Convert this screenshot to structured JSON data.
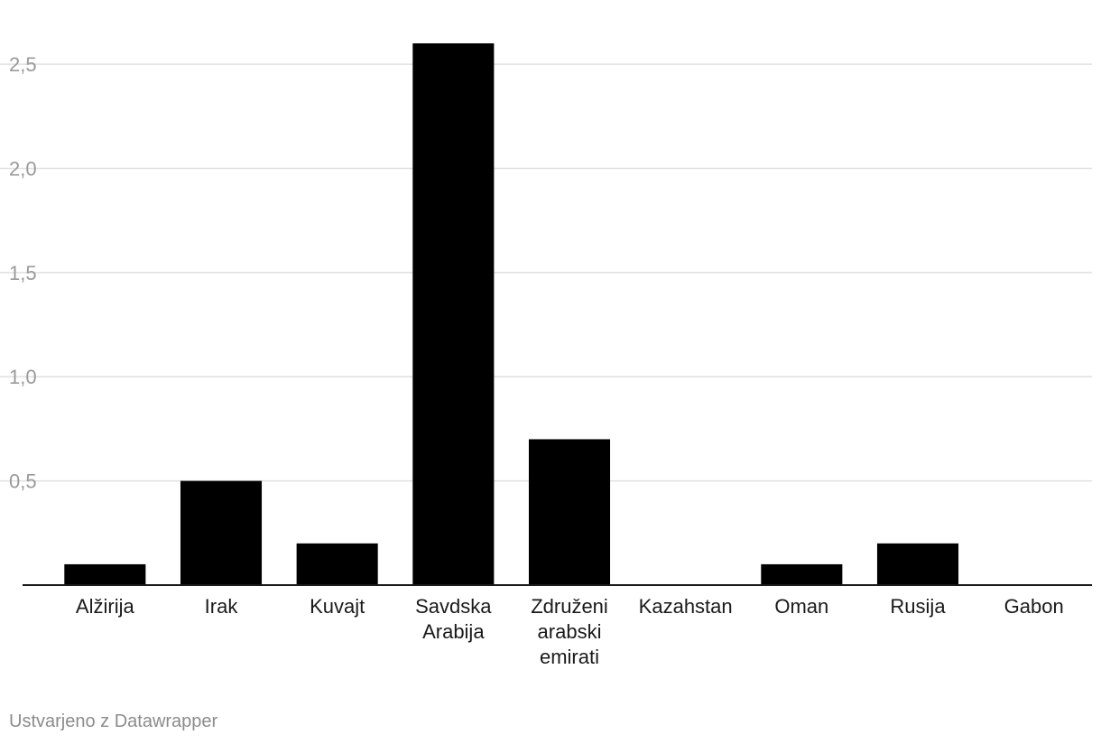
{
  "chart_data": {
    "type": "bar",
    "categories": [
      "Alžirija",
      "Irak",
      "Kuvajt",
      "Savdska Arabija",
      "Združeni arabski emirati",
      "Kazahstan",
      "Oman",
      "Rusija",
      "Gabon"
    ],
    "category_lines": [
      [
        "Alžirija"
      ],
      [
        "Irak"
      ],
      [
        "Kuvajt"
      ],
      [
        "Savdska",
        "Arabija"
      ],
      [
        "Združeni",
        "arabski",
        "emirati"
      ],
      [
        "Kazahstan"
      ],
      [
        "Oman"
      ],
      [
        "Rusija"
      ],
      [
        "Gabon"
      ]
    ],
    "values": [
      0.1,
      0.5,
      0.2,
      2.6,
      0.7,
      0,
      0.1,
      0.2,
      0
    ],
    "y_ticks": [
      0.5,
      1.0,
      1.5,
      2.0,
      2.5
    ],
    "y_tick_labels": [
      "0,5",
      "1,0",
      "1,5",
      "2,0",
      "2,5"
    ],
    "ylim": [
      0,
      2.6
    ],
    "grid": true,
    "bar_color": "#000000",
    "grid_color": "#e0e0e0"
  },
  "footer": {
    "credit": "Ustvarjeno z Datawrapper"
  }
}
